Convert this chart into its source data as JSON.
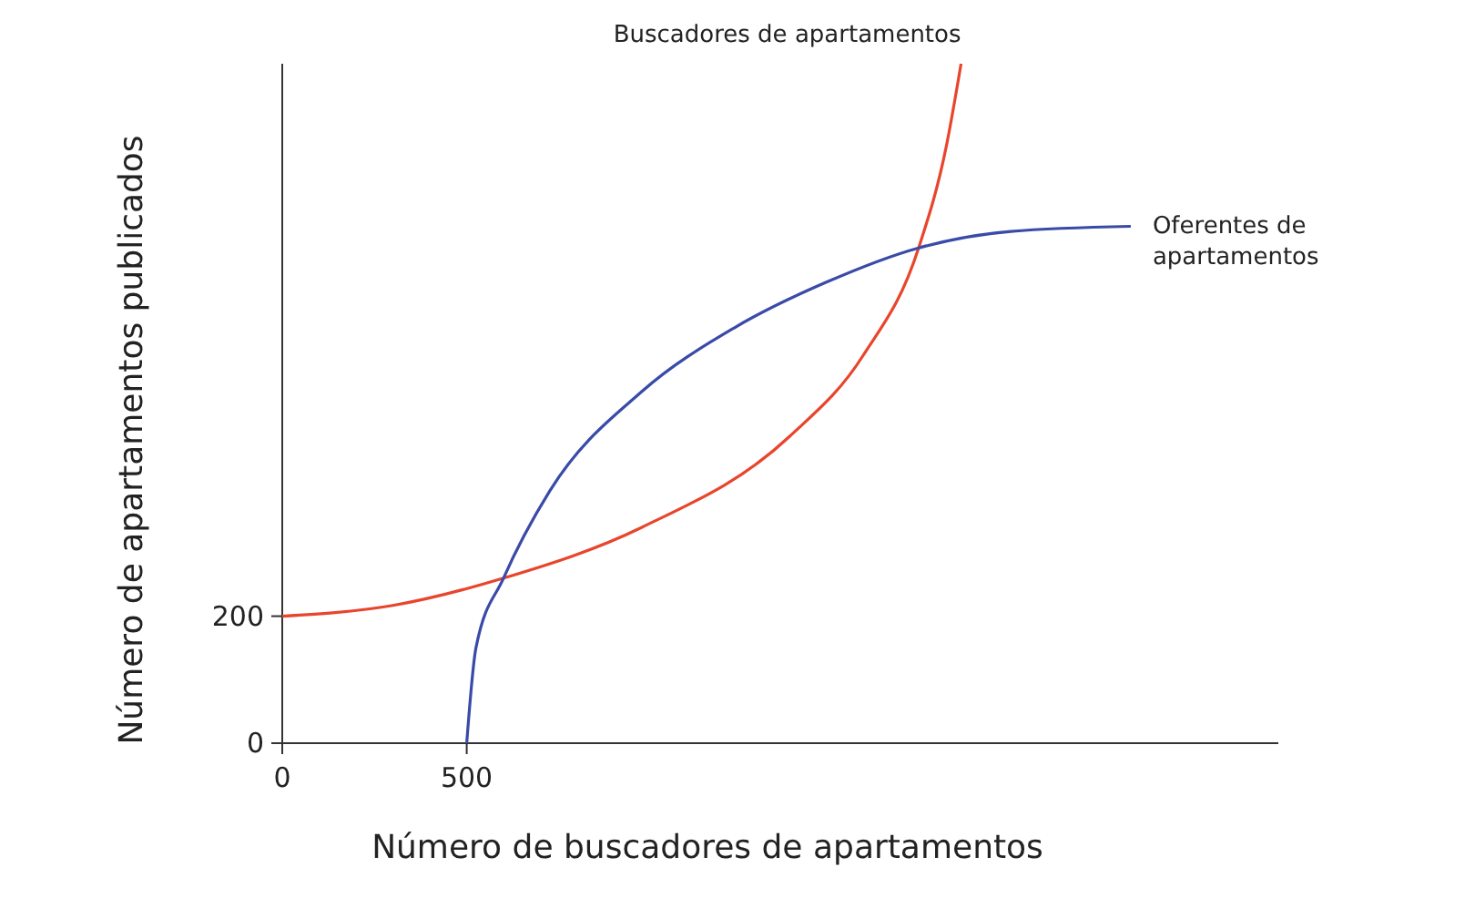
{
  "chart_data": {
    "type": "line",
    "xlabel": "Número de buscadores de apartamentos",
    "ylabel": "Número de apartamentos publicados",
    "xlim": [
      0,
      2700
    ],
    "ylim": [
      0,
      1070
    ],
    "xticks": [
      0,
      500
    ],
    "yticks": [
      0,
      200
    ],
    "grid": false,
    "line_style": "solid",
    "series": [
      {
        "name": "Buscadores de apartamentos",
        "color": "#e8452c",
        "x": [
          0,
          300,
          600,
          975,
          1375,
          1575,
          1725,
          1800,
          1840
        ],
        "values": [
          200,
          217,
          260,
          340,
          483,
          611,
          780,
          940,
          1070
        ]
      },
      {
        "name": "Oferentes de apartamentos",
        "color": "#3a4aa8",
        "x": [
          500,
          525,
          600,
          725,
          975,
          1225,
          1475,
          1725,
          1975,
          2300
        ],
        "values": [
          0,
          150,
          260,
          397,
          554,
          654,
          726,
          780,
          806,
          814
        ]
      }
    ]
  }
}
